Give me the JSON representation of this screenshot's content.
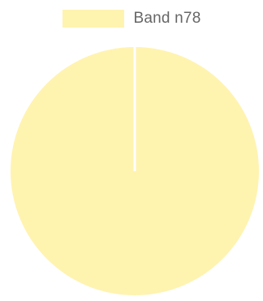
{
  "chart_data": {
    "type": "pie",
    "title": "",
    "legend_position": "top",
    "slices": [
      {
        "name": "Band n78",
        "value": 100,
        "color": "#FFF3B0"
      }
    ],
    "border_color": "#FFFFFF"
  }
}
